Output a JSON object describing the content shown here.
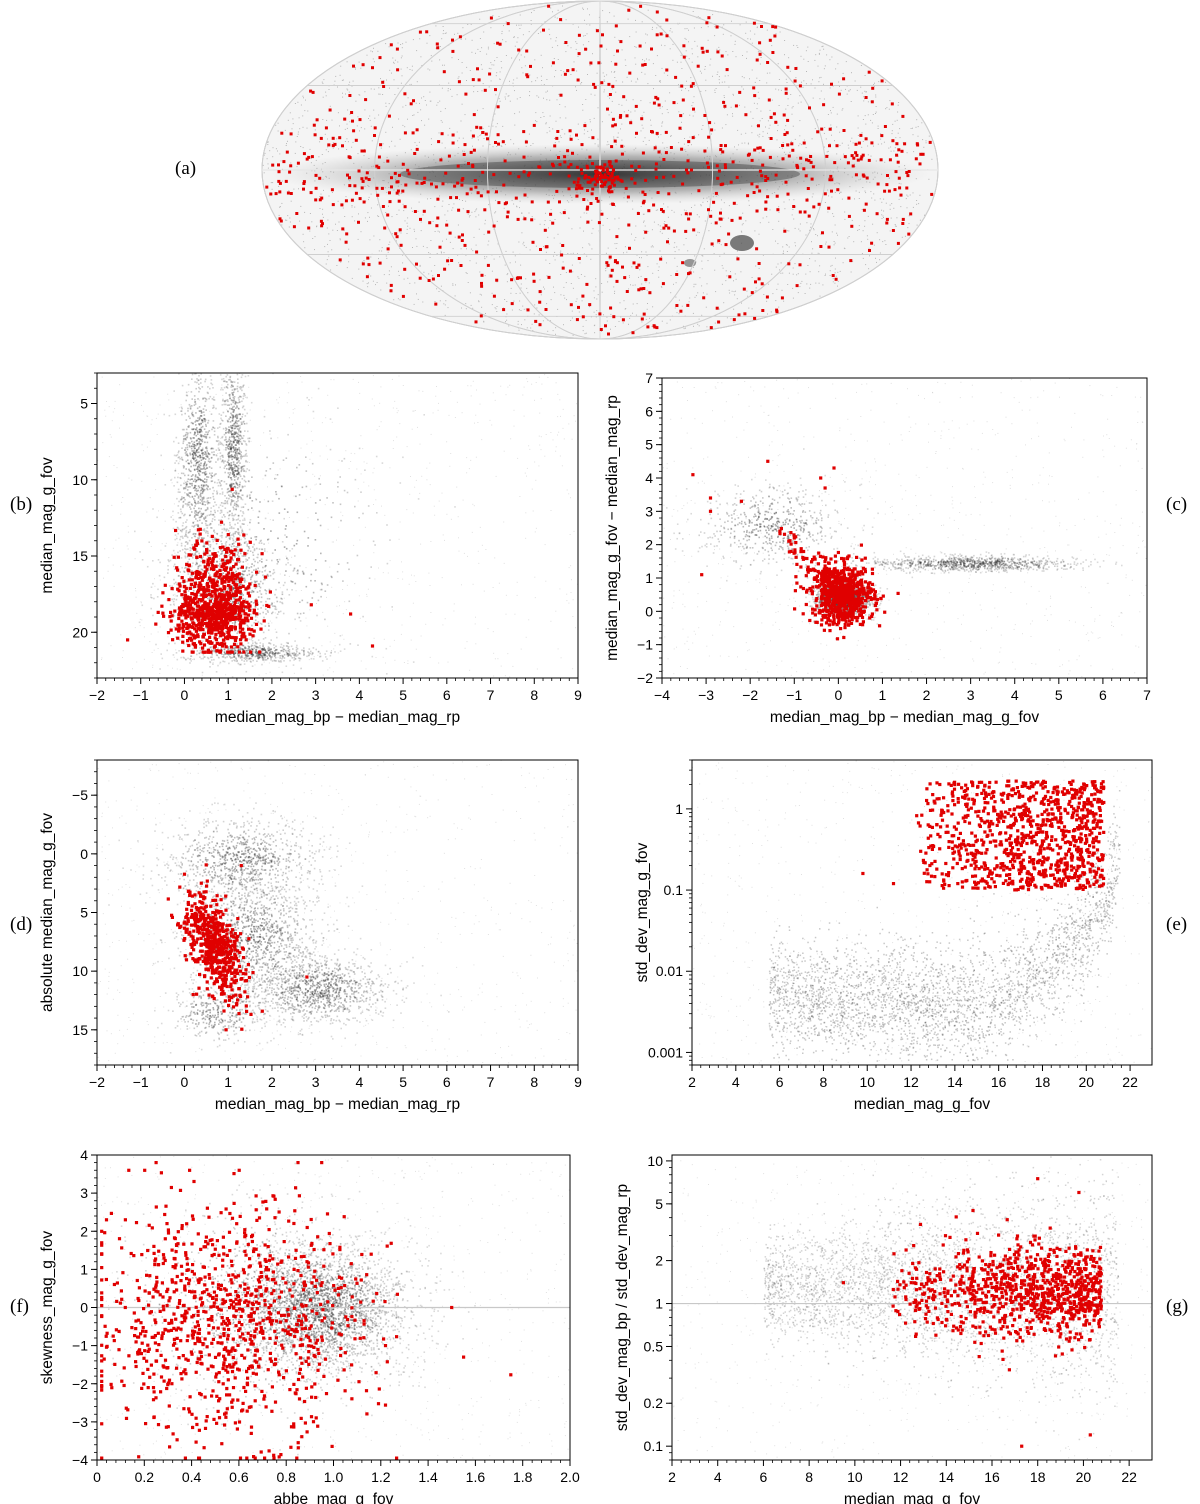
{
  "panel_labels": {
    "a": "(a)",
    "b": "(b)",
    "c": "(c)",
    "d": "(d)",
    "e": "(e)",
    "f": "(f)",
    "g": "(g)"
  },
  "colors": {
    "highlight": "#e00000",
    "density": "#3a3a3a",
    "background_points": "#a8a8a8",
    "reference_line": "#c8c8c8",
    "median_curve": "#ffffff"
  },
  "chart_data": [
    {
      "panel": "a",
      "type": "scatter",
      "projection": "mollweide-allsky",
      "description_shown": "grey density of all sources with a dense Galactic plane band; red highlighted sources spread over the whole sky",
      "title": "",
      "xlabel": "",
      "ylabel": "",
      "grid": true
    },
    {
      "panel": "b",
      "type": "scatter",
      "xlabel": "median_mag_bp − median_mag_rp",
      "ylabel": "median_mag_g_fov",
      "xlim": [
        -2,
        9
      ],
      "ylim": [
        23,
        3
      ],
      "y_inverted": true,
      "xticks": [
        -2,
        -1,
        0,
        1,
        2,
        3,
        4,
        5,
        6,
        7,
        8,
        9
      ],
      "yticks": [
        5,
        10,
        15,
        20
      ],
      "background_density": [
        {
          "x": 0.3,
          "y": 9,
          "sx": 0.25,
          "sy": 3.5,
          "w": 1.0
        },
        {
          "x": 1.1,
          "y": 8,
          "sx": 0.15,
          "sy": 3.0,
          "w": 0.9
        },
        {
          "x": 0.9,
          "y": 17,
          "sx": 0.7,
          "sy": 2.5,
          "w": 1.2
        },
        {
          "x": 1.6,
          "y": 21.3,
          "sx": 0.7,
          "sy": 0.3,
          "w": 0.6
        },
        {
          "x": 2.2,
          "y": 14,
          "sx": 1.2,
          "sy": 4.0,
          "w": 0.4
        }
      ],
      "highlight": {
        "x_center": 0.7,
        "x_spread": 0.45,
        "y_center": 18.2,
        "y_spread": 1.8,
        "count": 900,
        "outliers": [
          [
            -1.3,
            20.5
          ],
          [
            3.8,
            18.8
          ],
          [
            4.3,
            20.9
          ],
          [
            -0.6,
            18.7
          ],
          [
            2.9,
            18.2
          ]
        ]
      }
    },
    {
      "panel": "c",
      "type": "scatter",
      "xlabel": "median_mag_bp − median_mag_g_fov",
      "ylabel": "median_mag_g_fov − median_mag_rp",
      "xlim": [
        -4,
        7
      ],
      "ylim": [
        -2,
        7
      ],
      "xticks": [
        -4,
        -3,
        -2,
        -1,
        0,
        1,
        2,
        3,
        4,
        5,
        6,
        7
      ],
      "yticks": [
        -2,
        -1,
        0,
        1,
        2,
        3,
        4,
        5,
        6,
        7
      ],
      "background_density": [
        {
          "x": 0.1,
          "y": 0.4,
          "sx": 0.3,
          "sy": 0.25,
          "w": 1.4
        },
        {
          "x": -1.5,
          "y": 2.6,
          "sx": 0.8,
          "sy": 0.6,
          "w": 0.4
        },
        {
          "x": 3.0,
          "y": 1.45,
          "sx": 1.2,
          "sy": 0.12,
          "w": 0.6
        }
      ],
      "highlight": {
        "x_center": 0.1,
        "x_spread": 0.35,
        "y_center": 0.5,
        "y_spread": 0.45,
        "count": 700,
        "outliers": [
          [
            -3.3,
            4.1
          ],
          [
            -2.9,
            3.4
          ],
          [
            -2.2,
            3.3
          ],
          [
            -1.6,
            4.5
          ],
          [
            -0.1,
            4.3
          ],
          [
            -3.1,
            1.1
          ],
          [
            -0.3,
            3.7
          ],
          [
            -2.9,
            3.0
          ],
          [
            -0.4,
            4.0
          ],
          [
            -1.0,
            2.2
          ]
        ]
      }
    },
    {
      "panel": "d",
      "type": "scatter",
      "xlabel": "median_mag_bp − median_mag_rp",
      "ylabel": "absolute median_mag_g_fov",
      "xlim": [
        -2,
        9
      ],
      "ylim": [
        18,
        -8
      ],
      "y_inverted": true,
      "xticks": [
        -2,
        -1,
        0,
        1,
        2,
        3,
        4,
        5,
        6,
        7,
        8,
        9
      ],
      "yticks": [
        -5,
        0,
        5,
        10,
        15
      ],
      "background_density": [
        {
          "x": 1.3,
          "y": 0.5,
          "sx": 0.9,
          "sy": 1.8,
          "w": 0.8
        },
        {
          "x": 1.5,
          "y": 7.0,
          "sx": 0.8,
          "sy": 2.5,
          "w": 1.0
        },
        {
          "x": 3.0,
          "y": 11.5,
          "sx": 0.8,
          "sy": 1.5,
          "w": 1.0
        },
        {
          "x": 0.7,
          "y": 13.5,
          "sx": 0.5,
          "sy": 1.2,
          "w": 0.3
        }
      ],
      "highlight": {
        "x_center": 0.7,
        "x_spread": 0.35,
        "y_center": 7.8,
        "y_spread": 2.0,
        "count": 600,
        "outliers": [
          [
            1.3,
            1.0
          ],
          [
            2.8,
            10.5
          ],
          [
            0.2,
            12.0
          ]
        ]
      }
    },
    {
      "panel": "e",
      "type": "scatter",
      "xlabel": "median_mag_g_fov",
      "ylabel": "std_dev_mag_g_fov",
      "xlim": [
        2,
        23
      ],
      "ylim": [
        0.0007,
        4
      ],
      "y_scale": "log",
      "xticks": [
        2,
        4,
        6,
        8,
        10,
        12,
        14,
        16,
        18,
        20,
        22
      ],
      "yticks": [
        0.001,
        0.01,
        0.1,
        1
      ],
      "ytick_labels": [
        "0.001",
        "0.01",
        "0.1",
        "1"
      ],
      "median_curve": {
        "x": [
          6.0,
          7.0,
          8.0,
          9.0,
          10.0,
          10.5,
          11.0,
          11.5,
          12.0,
          12.5,
          13.0,
          14.0,
          15.0,
          16.0,
          17.0,
          18.0,
          19.0,
          20.0,
          20.5,
          21.0,
          21.5,
          22.0,
          23.0
        ],
        "y": [
          0.0078,
          0.0072,
          0.0068,
          0.006,
          0.0058,
          0.0062,
          0.0056,
          0.0068,
          0.0055,
          0.0052,
          0.0052,
          0.005,
          0.0052,
          0.0065,
          0.0095,
          0.015,
          0.026,
          0.05,
          0.08,
          0.15,
          0.45,
          0.75,
          0.75
        ]
      },
      "highlight": {
        "x_range": [
          12,
          20.8
        ],
        "y_range": [
          0.1,
          2.2
        ],
        "count": 1000,
        "outliers": [
          [
            9.8,
            0.16
          ],
          [
            11.2,
            0.12
          ]
        ]
      }
    },
    {
      "panel": "f",
      "type": "scatter",
      "xlabel": "abbe_mag_g_fov",
      "ylabel": "skewness_mag_g_fov",
      "xlim": [
        0,
        2
      ],
      "ylim": [
        -4,
        4
      ],
      "xticks": [
        0,
        0.2,
        0.4,
        0.6,
        0.8,
        1.0,
        1.2,
        1.4,
        1.6,
        1.8,
        2.0
      ],
      "xtick_labels": [
        "0",
        "0.2",
        "0.4",
        "0.6",
        "0.8",
        "1.0",
        "1.2",
        "1.4",
        "1.6",
        "1.8",
        "2.0"
      ],
      "yticks": [
        -4,
        -3,
        -2,
        -1,
        0,
        1,
        2,
        3,
        4
      ],
      "reference_line_y": 0,
      "background_density": [
        {
          "x": 0.95,
          "y": 0.0,
          "sx": 0.18,
          "sy": 0.8,
          "w": 1.4
        },
        {
          "x": 0.75,
          "y": 0.0,
          "sx": 0.3,
          "sy": 1.3,
          "w": 0.5
        }
      ],
      "highlight": {
        "x_center": 0.55,
        "x_spread": 0.28,
        "y_center": -0.4,
        "y_spread": 1.5,
        "count": 1000,
        "outliers": [
          [
            0.25,
            3.8
          ],
          [
            0.85,
            3.8
          ],
          [
            0.95,
            3.8
          ],
          [
            1.5,
            0.0
          ],
          [
            1.55,
            -1.3
          ],
          [
            0.04,
            2.3
          ],
          [
            0.12,
            2.3
          ],
          [
            1.22,
            -1.0
          ]
        ]
      }
    },
    {
      "panel": "g",
      "type": "scatter",
      "xlabel": "median_mag_g_fov",
      "ylabel": "std_dev_mag_bp / std_dev_mag_rp",
      "xlim": [
        2,
        23
      ],
      "ylim": [
        0.08,
        11
      ],
      "y_scale": "log",
      "xticks": [
        2,
        4,
        6,
        8,
        10,
        12,
        14,
        16,
        18,
        20,
        22
      ],
      "yticks": [
        0.1,
        0.2,
        0.5,
        1,
        2,
        5,
        10
      ],
      "ytick_labels": [
        "0.1",
        "0.2",
        "0.5",
        "1",
        "2",
        "5",
        "10"
      ],
      "reference_line_y": 1,
      "highlight": {
        "x_range": [
          11.5,
          20.8
        ],
        "y_center": 1.2,
        "y_log_spread": 0.16,
        "count": 1000,
        "outliers": [
          [
            17.3,
            0.1
          ],
          [
            18.0,
            7.5
          ],
          [
            19.8,
            6.0
          ],
          [
            20.3,
            0.12
          ],
          [
            9.5,
            1.4
          ]
        ]
      }
    }
  ]
}
